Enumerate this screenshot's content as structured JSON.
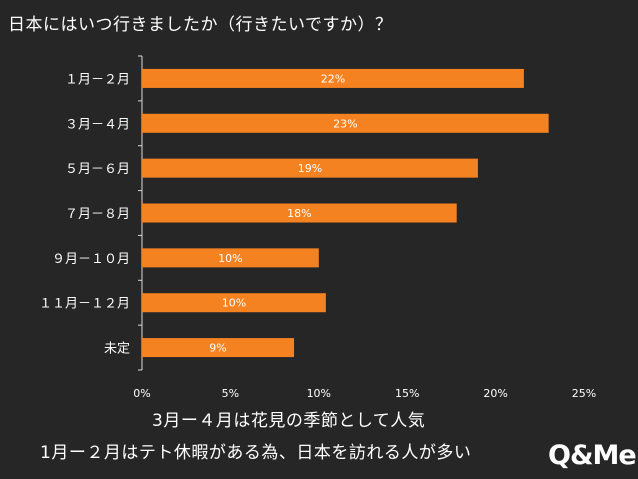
{
  "title": "日本にはいつ行きましたか（行きたいですか）？",
  "notes": {
    "line1": "3月ー４月は花見の季節として人気",
    "line2": "1月ー２月はテト休暇がある為、日本を訪れる人が多い"
  },
  "logo": "Q&Me",
  "colors": {
    "background": "#262626",
    "bar": "#f58220",
    "text": "#ffffff",
    "axis": "#d9d9d9"
  },
  "chart_data": {
    "type": "bar",
    "orientation": "horizontal",
    "categories": [
      "１月－２月",
      "３月－４月",
      "５月－６月",
      "７月－８月",
      "９月－１０月",
      "１１月－１２月",
      "未定"
    ],
    "values": [
      21.6,
      23.0,
      19.0,
      17.8,
      10.0,
      10.4,
      8.6
    ],
    "data_labels": [
      "22%",
      "23%",
      "19%",
      "18%",
      "10%",
      "10%",
      "9%"
    ],
    "xlim": [
      0,
      25
    ],
    "xticks": [
      "0%",
      "5%",
      "10%",
      "15%",
      "20%",
      "25%"
    ],
    "grid": false
  }
}
